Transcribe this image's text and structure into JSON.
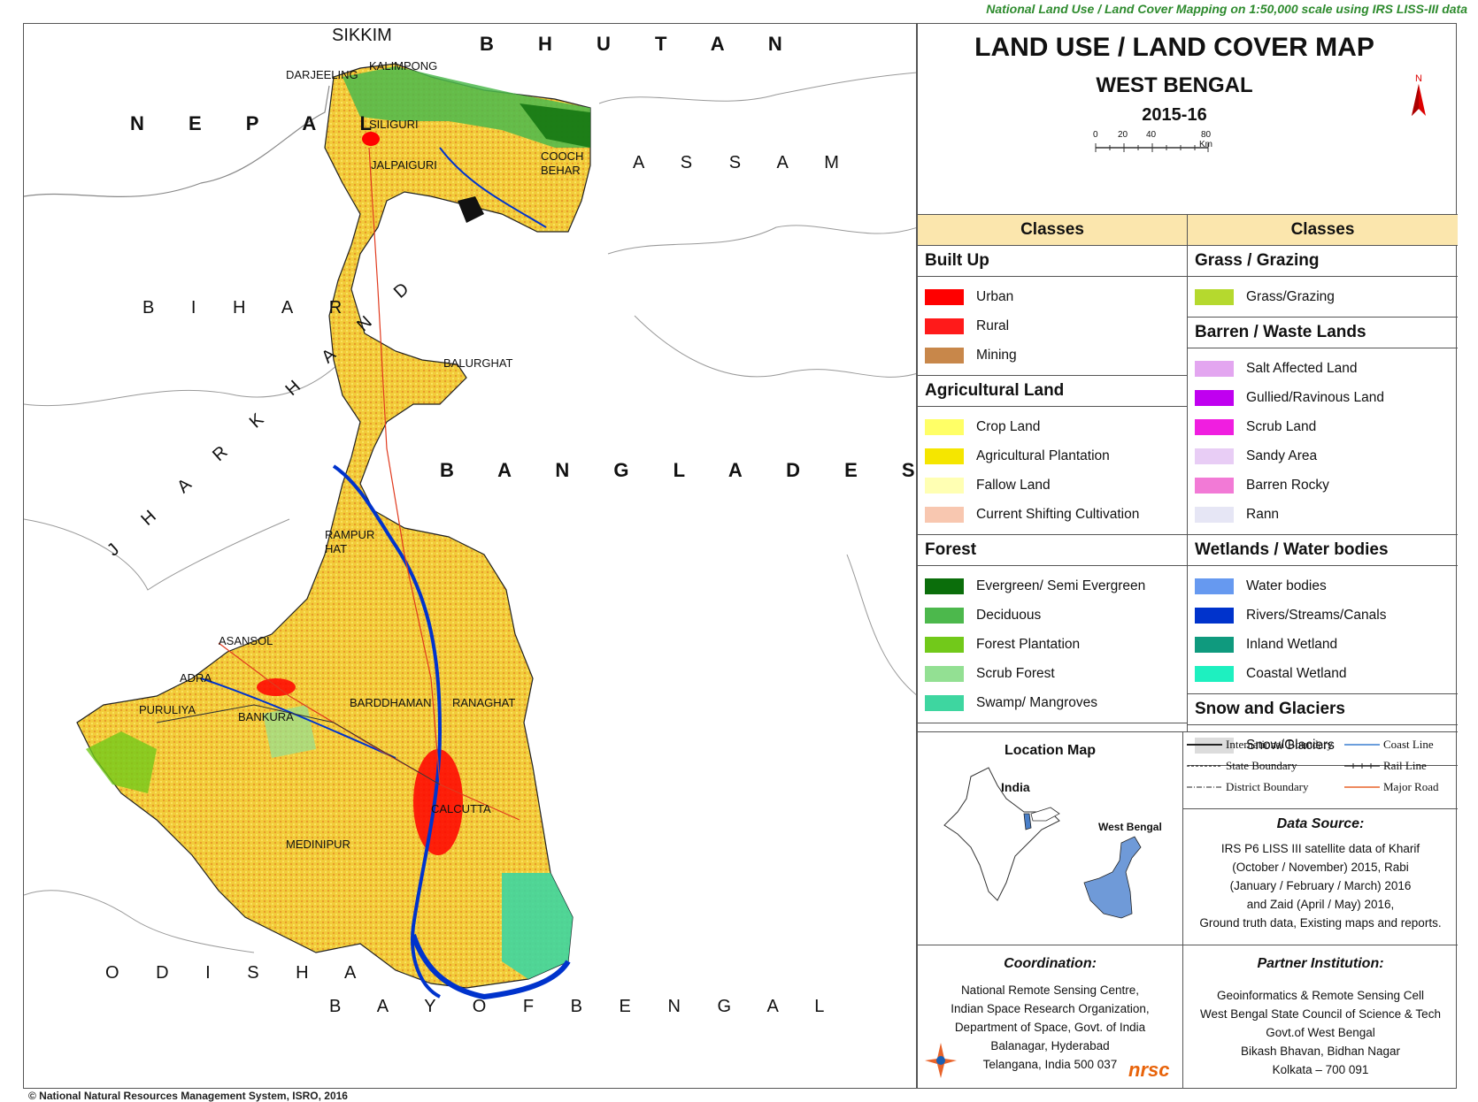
{
  "header_note": "National Land Use / Land Cover Mapping on 1:50,000 scale using IRS LISS-III data",
  "map": {
    "countries": [
      "SIKKIM",
      "BHUTAN",
      "NEPAL",
      "ASSAM",
      "BIHAR",
      "BANGLADESH",
      "JHARKHAND",
      "ODISHA",
      "BAY OF BENGAL"
    ],
    "labels": {
      "sikkim": "SIKKIM",
      "bhutan": "B H U T A N",
      "nepal": "N E P A L",
      "assam": "A S S A M",
      "bihar": "B I H A R",
      "bangladesh": "B A N G L A D E S H",
      "jharkhand": "J H A R K H A N D",
      "odisha": "O D I S H A",
      "bay": "B A Y   O F   B E N G A L"
    },
    "towns": {
      "darjeeling": "DARJEELING",
      "kalimpong": "KALIMPONG",
      "siliguri": "SILIGURI",
      "jalpaiguri": "JALPAIGURI",
      "cooch1": "COOCH",
      "cooch2": "BEHAR",
      "balurghat": "BALURGHAT",
      "rampur1": "RAMPUR",
      "rampur2": "HAT",
      "asansol": "ASANSOL",
      "adra": "ADRA",
      "puruliya": "PURULIYA",
      "bankura": "BANKURA",
      "barddhaman": "BARDDHAMAN",
      "ranaghat": "RANAGHAT",
      "calcutta": "CALCUTTA",
      "medinipur": "MEDINIPUR"
    },
    "copyright": "© National Natural Resources Management System, ISRO, 2016"
  },
  "title": {
    "main": "LAND USE / LAND COVER MAP",
    "region": "WEST BENGAL",
    "year": "2015-16",
    "scale_ticks": [
      "0",
      "20",
      "40",
      "80 Km"
    ],
    "north": "N"
  },
  "legend": {
    "header": "Classes",
    "left": [
      {
        "group": "Built Up",
        "items": [
          {
            "label": "Urban",
            "color": "#ff0000"
          },
          {
            "label": "Rural",
            "color": "#ff1a1a"
          },
          {
            "label": "Mining",
            "color": "#c8874a"
          }
        ]
      },
      {
        "group": "Agricultural Land",
        "items": [
          {
            "label": "Crop Land",
            "color": "#ffff66"
          },
          {
            "label": "Agricultural Plantation",
            "color": "#f5e600"
          },
          {
            "label": "Fallow Land",
            "color": "#ffffb3"
          },
          {
            "label": "Current Shifting Cultivation",
            "color": "#f8c7b0"
          }
        ]
      },
      {
        "group": "Forest",
        "items": [
          {
            "label": "Evergreen/ Semi Evergreen",
            "color": "#0b6e0b"
          },
          {
            "label": "Deciduous",
            "color": "#4cb84c"
          },
          {
            "label": "Forest Plantation",
            "color": "#72c91a"
          },
          {
            "label": "Scrub Forest",
            "color": "#93e093"
          },
          {
            "label": "Swamp/ Mangroves",
            "color": "#3ed6a0"
          }
        ]
      }
    ],
    "right": [
      {
        "group": "Grass / Grazing",
        "items": [
          {
            "label": "Grass/Grazing",
            "color": "#b5d92e"
          }
        ]
      },
      {
        "group": "Barren / Waste Lands",
        "items": [
          {
            "label": "Salt Affected Land",
            "color": "#e3a6f0"
          },
          {
            "label": "Gullied/Ravinous Land",
            "color": "#c000f0"
          },
          {
            "label": "Scrub Land",
            "color": "#f01ee0"
          },
          {
            "label": "Sandy Area",
            "color": "#e8cdf5"
          },
          {
            "label": "Barren Rocky",
            "color": "#f27ad6"
          },
          {
            "label": "Rann",
            "color": "#e6e6f5"
          }
        ]
      },
      {
        "group": "Wetlands / Water bodies",
        "items": [
          {
            "label": "Water bodies",
            "color": "#6699f0"
          },
          {
            "label": "Rivers/Streams/Canals",
            "color": "#0033cc"
          },
          {
            "label": "Inland Wetland",
            "color": "#0f9a7e"
          },
          {
            "label": "Coastal Wetland",
            "color": "#1ef0c0"
          }
        ]
      },
      {
        "group": "Snow and Glaciers",
        "items": [
          {
            "label": "Snow/Glaciers",
            "color": "#dcdcdc"
          }
        ]
      }
    ]
  },
  "location_map": {
    "title": "Location Map",
    "india": "India",
    "state": "West Bengal"
  },
  "boundaries": {
    "international": "International Boundary",
    "coast": "Coast Line",
    "state": "State Boundary",
    "rail": "Rail Line",
    "district": "District Boundary",
    "road": "Major Road"
  },
  "data_source": {
    "heading": "Data Source:",
    "lines": [
      "IRS P6 LISS III satellite data of Kharif",
      "(October / November) 2015, Rabi",
      "(January / February / March) 2016",
      "and Zaid (April / May) 2016,",
      "Ground truth data, Existing maps and reports."
    ]
  },
  "coordination": {
    "heading": "Coordination:",
    "lines": [
      "National Remote Sensing Centre,",
      "Indian Space Research Organization,",
      "Department of Space, Govt. of India",
      "Balanagar, Hyderabad",
      "Telangana, India 500 037"
    ],
    "logo_text": "nrsc"
  },
  "partner": {
    "heading": "Partner Institution:",
    "lines": [
      "Geoinformatics & Remote Sensing Cell",
      "West Bengal State Council of Science & Tech",
      "Govt.of West Bengal",
      "Bikash Bhavan, Bidhan Nagar",
      "Kolkata – 700 091"
    ]
  }
}
